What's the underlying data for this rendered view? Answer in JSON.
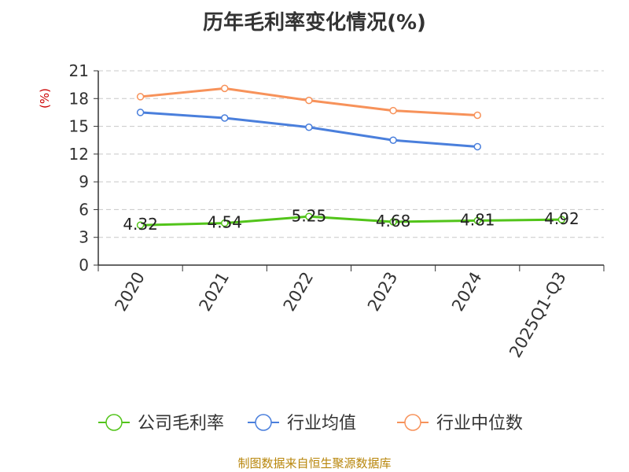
{
  "chart_data": {
    "type": "line",
    "title": "历年毛利率变化情况(%)",
    "ylabel": "(%)",
    "xlabel": "",
    "categories": [
      "2020",
      "2021",
      "2022",
      "2023",
      "2024",
      "2025Q1-Q3"
    ],
    "ylim": [
      0,
      21
    ],
    "yticks": [
      0,
      3,
      6,
      9,
      12,
      15,
      18,
      21
    ],
    "grid": true,
    "legend_position": "bottom",
    "series": [
      {
        "name": "公司毛利率",
        "color": "#52c41a",
        "values": [
          4.32,
          4.54,
          5.25,
          4.68,
          4.81,
          4.92
        ],
        "show_labels": true
      },
      {
        "name": "行业均值",
        "color": "#4a7fdc",
        "values": [
          16.5,
          15.9,
          14.9,
          13.5,
          12.8,
          null
        ],
        "show_labels": false
      },
      {
        "name": "行业中位数",
        "color": "#f7925a",
        "values": [
          18.2,
          19.1,
          17.8,
          16.7,
          16.2,
          null
        ],
        "show_labels": false
      }
    ]
  },
  "source": "制图数据来自恒生聚源数据库"
}
